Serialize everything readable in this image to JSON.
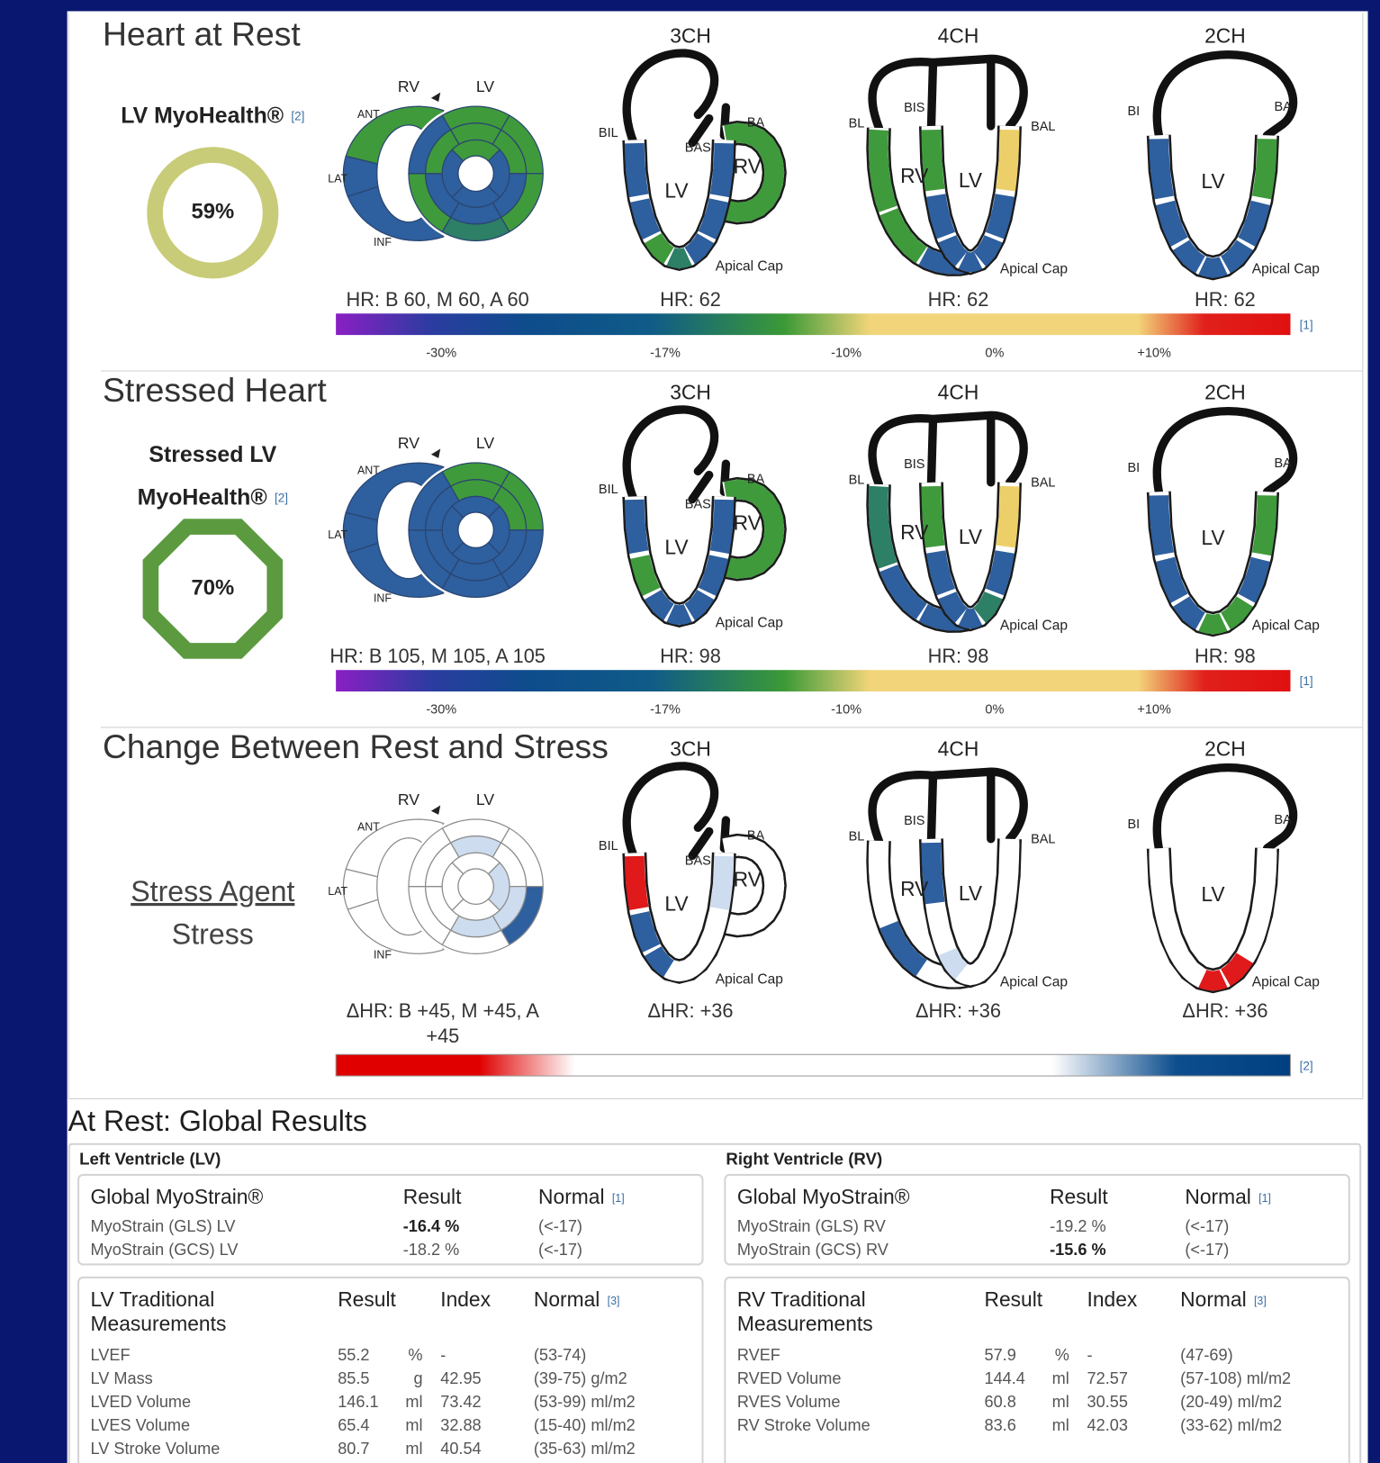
{
  "palette": {
    "b": "#2e5f9e",
    "g": "#3f9a3c",
    "t": "#2d7f66",
    "y": "#eccf68",
    "r": "#e0191b",
    "l": "#cddcee",
    "w": "#ffffff"
  },
  "diagram_labels": {
    "bullseye": [
      "RV",
      "LV",
      "ANT",
      "LAT",
      "INF"
    ],
    "views": [
      [
        "BIL",
        "BAS",
        "BA",
        "RV",
        "LV",
        "Apical Cap"
      ],
      [
        "BL",
        "BIS",
        "BAL",
        "RV",
        "LV",
        "Apical Cap"
      ],
      [
        "BI",
        "BA",
        "LV",
        "Apical Cap"
      ]
    ]
  },
  "sections": [
    {
      "title": "Heart at Rest",
      "metric": {
        "lines": [
          "LV MyoHealth®"
        ],
        "ref": "[2]",
        "value": "59%",
        "shape": "ring",
        "color": "#c8cc78"
      },
      "bullseye": {
        "hr": "HR: B 60, M 60, A 60",
        "outline": "#2a4570",
        "rv": [
          "g",
          "b",
          "b"
        ],
        "outer": [
          "g",
          "g",
          "g",
          "t",
          "g",
          "b"
        ],
        "mid": [
          "g",
          "g",
          "b",
          "b",
          "b",
          "g"
        ],
        "apical": [
          "g",
          "b",
          "b",
          "b"
        ]
      },
      "views": [
        {
          "label": "3CH",
          "hr": "HR: 62",
          "lv": [
            "b",
            "b",
            "g",
            "t",
            "b",
            "b",
            "b"
          ],
          "rv": [
            "g"
          ]
        },
        {
          "label": "4CH",
          "hr": "HR: 62",
          "lv": [
            "g",
            "b",
            "b",
            "b",
            "b",
            "b",
            "y"
          ],
          "rv": [
            "g",
            "g",
            "b"
          ]
        },
        {
          "label": "2CH",
          "hr": "HR: 62",
          "lv": [
            "b",
            "b",
            "b",
            "b",
            "b",
            "b",
            "g"
          ]
        }
      ],
      "scale": {
        "colors": [
          "#8a1fc4",
          "#2b3ca0",
          "#0e4c8c",
          "#0f5b88",
          "#3b9a36",
          "#f2d57a",
          "#f2d57a",
          "#e0201c",
          "#e01010"
        ],
        "ticks": [
          "-30%",
          "-17%",
          "-10%",
          "0%",
          "+10%"
        ],
        "ref": "[1]"
      }
    },
    {
      "title": "Stressed Heart",
      "metric": {
        "lines": [
          "Stressed LV",
          "MyoHealth®"
        ],
        "ref": "[2]",
        "value": "70%",
        "shape": "octagon",
        "color": "#5b9a3f"
      },
      "bullseye": {
        "hr": "HR: B 105, M 105, A 105",
        "outline": "#2a4570",
        "rv": [
          "b",
          "b",
          "b"
        ],
        "outer": [
          "g",
          "g",
          "b",
          "b",
          "b",
          "b"
        ],
        "mid": [
          "g",
          "g",
          "b",
          "b",
          "b",
          "b"
        ],
        "apical": [
          "b",
          "b",
          "b",
          "b"
        ]
      },
      "views": [
        {
          "label": "3CH",
          "hr": "HR: 98",
          "lv": [
            "b",
            "g",
            "b",
            "b",
            "b",
            "b",
            "b"
          ],
          "rv": [
            "g"
          ]
        },
        {
          "label": "4CH",
          "hr": "HR: 98",
          "lv": [
            "g",
            "b",
            "b",
            "b",
            "t",
            "b",
            "y"
          ],
          "rv": [
            "t",
            "b",
            "b"
          ]
        },
        {
          "label": "2CH",
          "hr": "HR: 98",
          "lv": [
            "b",
            "b",
            "b",
            "g",
            "g",
            "b",
            "g"
          ]
        }
      ],
      "scale": {
        "colors": [
          "#8a1fc4",
          "#2b3ca0",
          "#0e4c8c",
          "#0f5b88",
          "#3b9a36",
          "#f2d57a",
          "#f2d57a",
          "#e0201c",
          "#e01010"
        ],
        "ticks": [
          "-30%",
          "-17%",
          "-10%",
          "0%",
          "+10%"
        ],
        "ref": "[1]"
      }
    },
    {
      "title": "Change Between Rest and Stress",
      "metric": {
        "lines": [
          "Stress Agent",
          "Stress"
        ],
        "underline_first": true
      },
      "bullseye": {
        "hr": "ΔHR: B +45, M +45, A +45",
        "outline": "#8c8c8c",
        "rv": [
          "w",
          "w",
          "w"
        ],
        "outer": [
          "w",
          "w",
          "b",
          "w",
          "w",
          "w"
        ],
        "mid": [
          "l",
          "w",
          "l",
          "l",
          "w",
          "w"
        ],
        "apical": [
          "w",
          "l",
          "w",
          "w"
        ]
      },
      "views": [
        {
          "label": "3CH",
          "hr": "ΔHR: +36",
          "lv": [
            "r",
            "b",
            "b",
            "w",
            "w",
            "w",
            "l"
          ],
          "rv": [
            "w"
          ]
        },
        {
          "label": "4CH",
          "hr": "ΔHR: +36",
          "lv": [
            "b",
            "w",
            "l",
            "w",
            "w",
            "w",
            "w"
          ],
          "rv": [
            "w",
            "b",
            "w"
          ]
        },
        {
          "label": "2CH",
          "hr": "ΔHR: +36",
          "lv": [
            "w",
            "w",
            "w",
            "r",
            "r",
            "w",
            "w"
          ]
        }
      ],
      "scale": {
        "colors": [
          "#e00000",
          "#e00000",
          "#ffffff",
          "#ffffff",
          "#0d4e8e",
          "#003f80"
        ],
        "ticks": [
          "-10%",
          "0%",
          "10%"
        ],
        "ref": "[2]"
      }
    }
  ],
  "global_results": {
    "title": "At Rest: Global Results",
    "panels": [
      {
        "title": "Left Ventricle (LV)",
        "strain": {
          "header": [
            "Global MyoStrain®",
            "Result",
            "Normal"
          ],
          "ref": "[1]",
          "rows": [
            {
              "name": "MyoStrain (GLS) LV",
              "result": "-16.4 %",
              "normal": "(<-17)",
              "abnormal": true
            },
            {
              "name": "MyoStrain (GCS) LV",
              "result": "-18.2 %",
              "normal": "(<-17)",
              "abnormal": false
            }
          ]
        },
        "traditional": {
          "header": [
            "LV Traditional Measurements",
            "Result",
            "Index",
            "Normal"
          ],
          "ref": "[3]",
          "rows": [
            [
              "LVEF",
              "55.2",
              "%",
              "-",
              "(53-74)"
            ],
            [
              "LV Mass",
              "85.5",
              "g",
              "42.95",
              "(39-75) g/m2"
            ],
            [
              "LVED Volume",
              "146.1",
              "ml",
              "73.42",
              "(53-99) ml/m2"
            ],
            [
              "LVES Volume",
              "65.4",
              "ml",
              "32.88",
              "(15-40) ml/m2"
            ],
            [
              "LV Stroke Volume",
              "80.7",
              "ml",
              "40.54",
              "(35-63) ml/m2"
            ]
          ]
        }
      },
      {
        "title": "Right Ventricle (RV)",
        "strain": {
          "header": [
            "Global MyoStrain®",
            "Result",
            "Normal"
          ],
          "ref": "[1]",
          "rows": [
            {
              "name": "MyoStrain (GLS) RV",
              "result": "-19.2 %",
              "normal": "(<-17)",
              "abnormal": false
            },
            {
              "name": "MyoStrain (GCS) RV",
              "result": "-15.6 %",
              "normal": "(<-17)",
              "abnormal": true
            }
          ]
        },
        "traditional": {
          "header": [
            "RV Traditional Measurements",
            "Result",
            "Index",
            "Normal"
          ],
          "ref": "[3]",
          "rows": [
            [
              "RVEF",
              "57.9",
              "%",
              "-",
              "(47-69)"
            ],
            [
              "RVED Volume",
              "144.4",
              "ml",
              "72.57",
              "(57-108) ml/m2"
            ],
            [
              "RVES Volume",
              "60.8",
              "ml",
              "30.55",
              "(20-49) ml/m2"
            ],
            [
              "RV Stroke Volume",
              "83.6",
              "ml",
              "42.03",
              "(33-62) ml/m2"
            ]
          ]
        }
      }
    ]
  }
}
